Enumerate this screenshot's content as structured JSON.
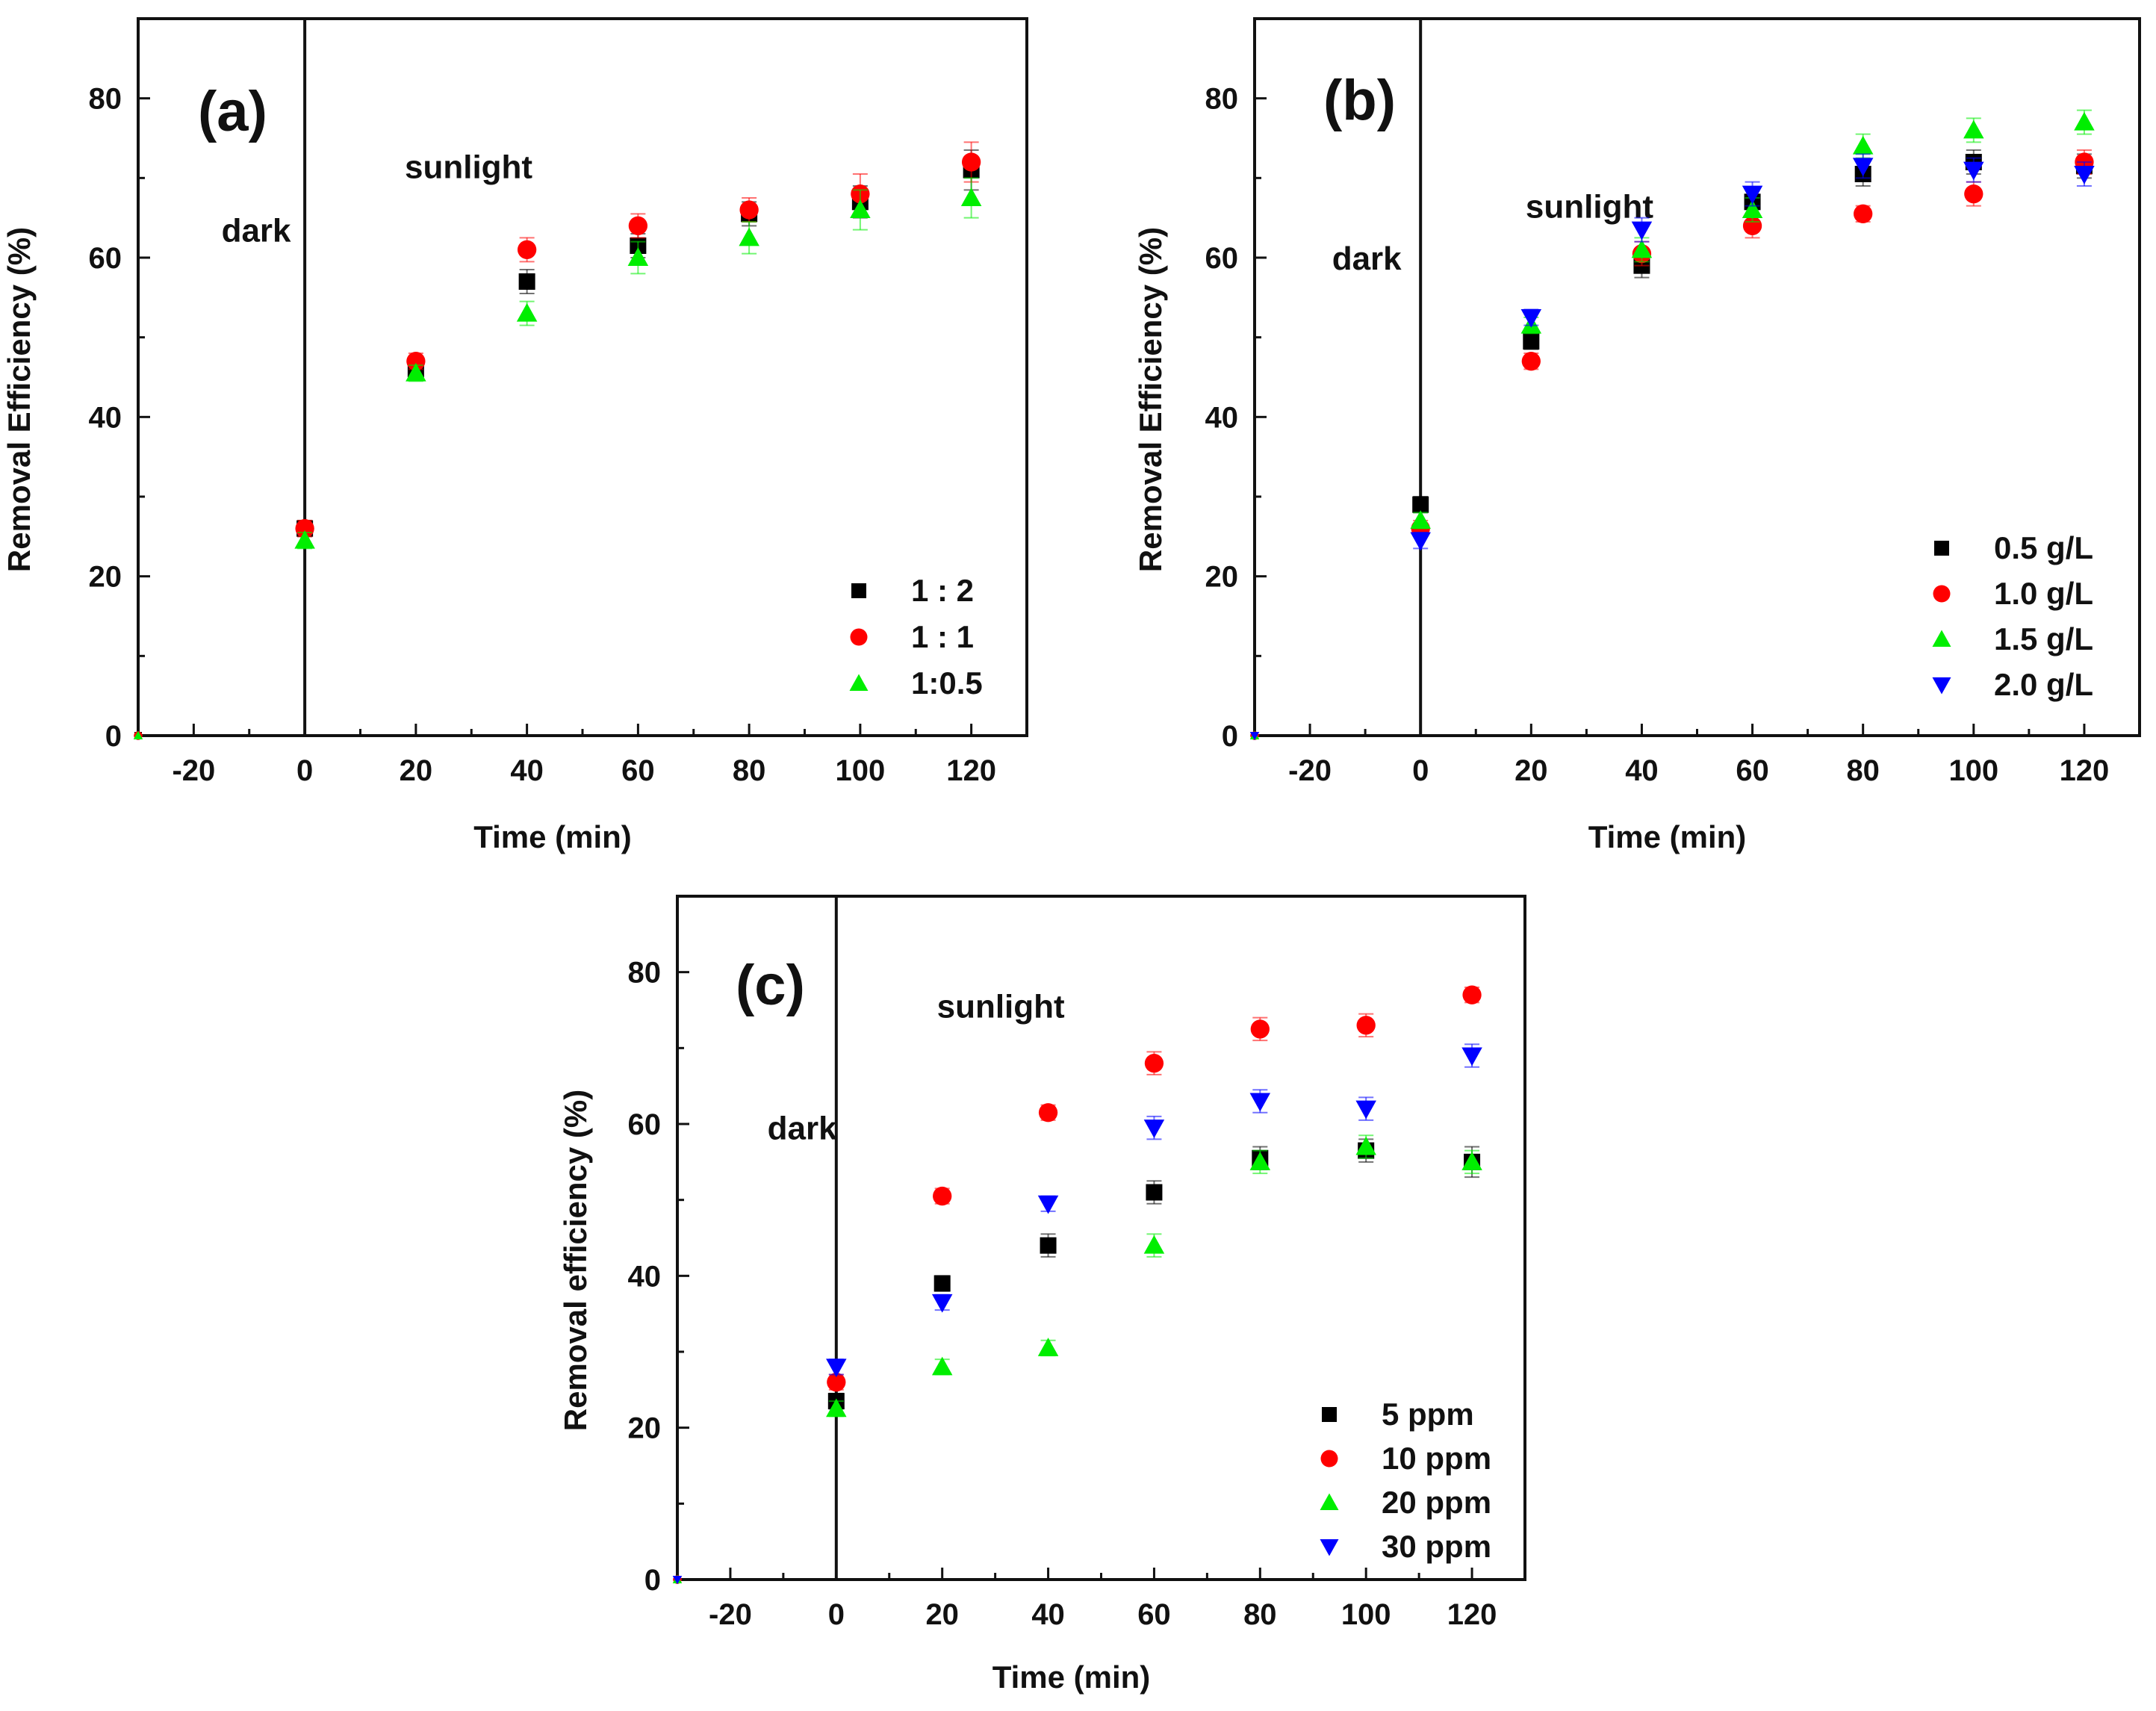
{
  "figure": {
    "page_background": "#ffffff"
  },
  "chart_data": [
    {
      "type": "scatter",
      "panel_label": "(a)",
      "xlabel": "Time (min)",
      "ylabel": "Removal Efficiency (%)",
      "xlim": [
        -30,
        130
      ],
      "ylim": [
        0,
        90
      ],
      "xticks": [
        -20,
        0,
        20,
        40,
        60,
        80,
        100,
        120
      ],
      "xtick_labels": [
        "-20",
        "0",
        "20",
        "40",
        "60",
        "80",
        "100",
        "120"
      ],
      "yticks": [
        0,
        20,
        40,
        60,
        80
      ],
      "ytick_labels": [
        "0",
        "20",
        "40",
        "60",
        "80"
      ],
      "divider_x": 0,
      "annotations": [
        {
          "text": "dark",
          "x": -15,
          "y": 62
        },
        {
          "text": "sunlight",
          "x": 18,
          "y": 70
        }
      ],
      "legend_position": "bottom-right",
      "series": [
        {
          "name": "1 : 2",
          "marker": "square",
          "color": "#000000",
          "x": [
            -30,
            0,
            20,
            40,
            60,
            80,
            100,
            120
          ],
          "y": [
            0,
            26,
            46,
            57,
            61.5,
            65.5,
            67,
            71
          ],
          "err": [
            0,
            1,
            1,
            1.5,
            1.5,
            1.5,
            2,
            2.5
          ]
        },
        {
          "name": "1 : 1",
          "marker": "circle",
          "color": "#ff0000",
          "x": [
            -30,
            0,
            20,
            40,
            60,
            80,
            100,
            120
          ],
          "y": [
            0,
            26,
            47,
            61,
            64,
            66,
            68,
            72
          ],
          "err": [
            0,
            1,
            1,
            1.5,
            1.5,
            1.5,
            2.5,
            2.5
          ]
        },
        {
          "name": "1:0.5",
          "marker": "triangle-up",
          "color": "#00ee00",
          "x": [
            -30,
            0,
            20,
            40,
            60,
            80,
            100,
            120
          ],
          "y": [
            0,
            24.5,
            45.5,
            53,
            60,
            62.5,
            66,
            67.5
          ],
          "err": [
            0,
            1,
            1,
            1.5,
            2,
            2,
            2.5,
            2.5
          ]
        }
      ]
    },
    {
      "type": "scatter",
      "panel_label": "(b)",
      "xlabel": "Time (min)",
      "ylabel": "Removal Efficiency (%)",
      "xlim": [
        -30,
        130
      ],
      "ylim": [
        0,
        90
      ],
      "xticks": [
        -20,
        0,
        20,
        40,
        60,
        80,
        100,
        120
      ],
      "xtick_labels": [
        "-20",
        "0",
        "20",
        "40",
        "60",
        "80",
        "100",
        "120"
      ],
      "yticks": [
        0,
        20,
        40,
        60,
        80
      ],
      "ytick_labels": [
        "0",
        "20",
        "40",
        "60",
        "80"
      ],
      "divider_x": 0,
      "annotations": [
        {
          "text": "dark",
          "x": -16,
          "y": 58.5
        },
        {
          "text": "sunlight",
          "x": 19,
          "y": 65
        }
      ],
      "legend_position": "bottom-right",
      "series": [
        {
          "name": "0.5 g/L",
          "marker": "square",
          "color": "#000000",
          "x": [
            -30,
            0,
            20,
            40,
            60,
            80,
            100,
            120
          ],
          "y": [
            0,
            29,
            49.5,
            59,
            67,
            70.5,
            72,
            71.5
          ],
          "err": [
            0,
            1,
            1,
            1.5,
            1.5,
            1.5,
            1.5,
            1.5
          ]
        },
        {
          "name": "1.0 g/L",
          "marker": "circle",
          "color": "#ff0000",
          "x": [
            -30,
            0,
            20,
            40,
            60,
            80,
            100,
            120
          ],
          "y": [
            0,
            26,
            47,
            60.5,
            64,
            65.5,
            68,
            72
          ],
          "err": [
            0,
            1,
            1,
            1.5,
            1.5,
            1,
            1.5,
            1.5
          ]
        },
        {
          "name": "1.5 g/L",
          "marker": "triangle-up",
          "color": "#00ee00",
          "x": [
            -30,
            0,
            20,
            40,
            60,
            80,
            100,
            120
          ],
          "y": [
            0,
            27,
            51.5,
            61,
            66,
            74,
            76,
            77
          ],
          "err": [
            0,
            1,
            1,
            1.5,
            1.5,
            1.5,
            1.5,
            1.5
          ]
        },
        {
          "name": "2.0 g/L",
          "marker": "triangle-down",
          "color": "#0000ff",
          "x": [
            -30,
            0,
            20,
            40,
            60,
            80,
            100,
            120
          ],
          "y": [
            0,
            24.5,
            52.5,
            63.5,
            68,
            71.5,
            71,
            70.5
          ],
          "err": [
            0,
            1,
            1,
            1.5,
            1.5,
            1.5,
            1.5,
            1.5
          ]
        }
      ]
    },
    {
      "type": "scatter",
      "panel_label": "(c)",
      "xlabel": "Time (min)",
      "ylabel": "Removal efficiency (%)",
      "xlim": [
        -30,
        130
      ],
      "ylim": [
        0,
        90
      ],
      "xticks": [
        -20,
        0,
        20,
        40,
        60,
        80,
        100,
        120
      ],
      "xtick_labels": [
        "-20",
        "0",
        "20",
        "40",
        "60",
        "80",
        "100",
        "120"
      ],
      "yticks": [
        0,
        20,
        40,
        60,
        80
      ],
      "ytick_labels": [
        "0",
        "20",
        "40",
        "60",
        "80"
      ],
      "divider_x": 0,
      "annotations": [
        {
          "text": "dark",
          "x": -13,
          "y": 58
        },
        {
          "text": "sunlight",
          "x": 19,
          "y": 74
        }
      ],
      "legend_position": "bottom-right",
      "series": [
        {
          "name": "5 ppm",
          "marker": "square",
          "color": "#000000",
          "x": [
            -30,
            0,
            20,
            40,
            60,
            80,
            100,
            120
          ],
          "y": [
            0,
            23.5,
            39,
            44,
            51,
            55.5,
            56.5,
            55
          ],
          "err": [
            0,
            1,
            1,
            1.5,
            1.5,
            1.5,
            1.5,
            2
          ]
        },
        {
          "name": "10 ppm",
          "marker": "circle",
          "color": "#ff0000",
          "x": [
            -30,
            0,
            20,
            40,
            60,
            80,
            100,
            120
          ],
          "y": [
            0,
            26,
            50.5,
            61.5,
            68,
            72.5,
            73,
            77
          ],
          "err": [
            0,
            1,
            1,
            1,
            1.5,
            1.5,
            1.5,
            1
          ]
        },
        {
          "name": "20 ppm",
          "marker": "triangle-up",
          "color": "#00ee00",
          "x": [
            -30,
            0,
            20,
            40,
            60,
            80,
            100,
            120
          ],
          "y": [
            0,
            22.5,
            28,
            30.5,
            44,
            55,
            57,
            55
          ],
          "err": [
            0,
            1,
            1,
            1,
            1.5,
            1.5,
            1.5,
            1.5
          ]
        },
        {
          "name": "30 ppm",
          "marker": "triangle-down",
          "color": "#0000ff",
          "x": [
            -30,
            0,
            20,
            40,
            60,
            80,
            100,
            120
          ],
          "y": [
            0,
            28,
            36.5,
            49.5,
            59.5,
            63,
            62,
            69
          ],
          "err": [
            0,
            1,
            1,
            1,
            1.5,
            1.5,
            1.5,
            1.5
          ]
        }
      ]
    }
  ]
}
